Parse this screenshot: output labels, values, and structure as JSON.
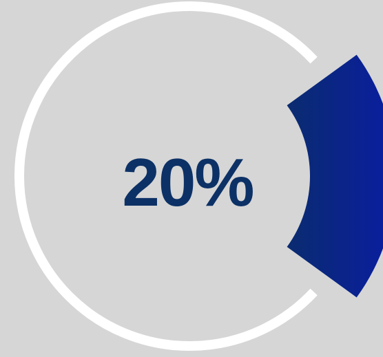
{
  "chart_data": {
    "type": "pie",
    "style": "progress-ring",
    "value_percent": 20,
    "center_label": "20%",
    "colors": {
      "background": "#d6d6d6",
      "track": "#ffffff",
      "segment_start": "#0b2f62",
      "segment_end": "#0a1f9c",
      "label": "#0c3166"
    }
  }
}
